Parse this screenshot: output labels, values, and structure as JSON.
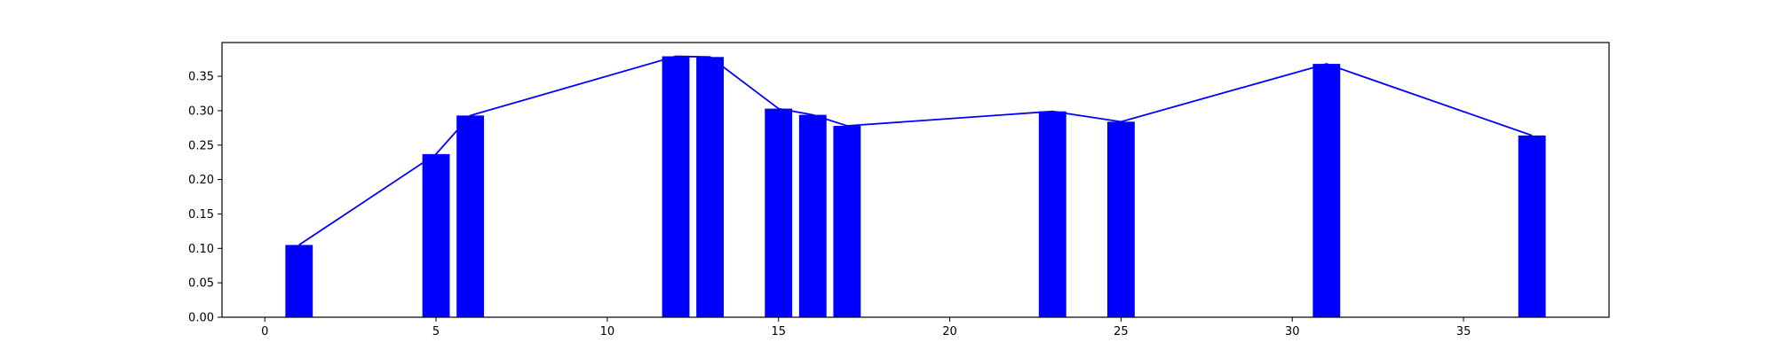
{
  "chart_data": {
    "type": "bar",
    "title": "",
    "xlabel": "",
    "ylabel": "",
    "xlim": [
      -1.25,
      39.25
    ],
    "ylim": [
      0,
      0.399
    ],
    "grid": false,
    "bar_color": "#0000ff",
    "line_color": "#0000ff",
    "axis_color": "#000000",
    "x_ticks": [
      0,
      5,
      10,
      15,
      20,
      25,
      30,
      35
    ],
    "x_tick_labels": [
      "0",
      "5",
      "10",
      "15",
      "20",
      "25",
      "30",
      "35"
    ],
    "y_ticks": [
      0.0,
      0.05,
      0.1,
      0.15,
      0.2,
      0.25,
      0.3,
      0.35
    ],
    "y_tick_labels": [
      "0.00",
      "0.05",
      "0.10",
      "0.15",
      "0.20",
      "0.25",
      "0.30",
      "0.35"
    ],
    "x": [
      1,
      5,
      6,
      12,
      13,
      15,
      16,
      17,
      23,
      25,
      31,
      37
    ],
    "values": [
      0.105,
      0.237,
      0.293,
      0.379,
      0.378,
      0.303,
      0.294,
      0.278,
      0.299,
      0.284,
      0.368,
      0.264
    ],
    "bar_width": 0.8,
    "overlays": [
      {
        "type": "line",
        "x": [
          1,
          5,
          6,
          12,
          13,
          15,
          16,
          17,
          23,
          25,
          31,
          37
        ],
        "values": [
          0.105,
          0.237,
          0.293,
          0.379,
          0.378,
          0.303,
          0.294,
          0.278,
          0.299,
          0.284,
          0.368,
          0.264
        ]
      }
    ]
  }
}
